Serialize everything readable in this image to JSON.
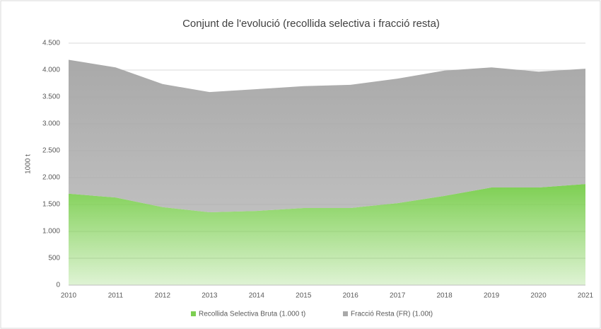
{
  "chart_data": {
    "type": "stacked_area",
    "title": "Conjunt de l'evolució (recollida selectiva i fracció resta)",
    "y_label": "1000 t",
    "categories": [
      "2010",
      "2011",
      "2012",
      "2013",
      "2014",
      "2015",
      "2016",
      "2017",
      "2018",
      "2019",
      "2020",
      "2021"
    ],
    "series": [
      {
        "name": "Recollida Selectiva Bruta (1.000 t)",
        "color": "#7dcf52",
        "values": [
          1700,
          1630,
          1450,
          1355,
          1380,
          1435,
          1435,
          1525,
          1660,
          1815,
          1815,
          1880
        ]
      },
      {
        "name": "Fracció Resta (FR) (1.00t)",
        "color": "#a9a9a9",
        "values": [
          2490,
          2420,
          2290,
          2235,
          2265,
          2265,
          2290,
          2315,
          2330,
          2235,
          2155,
          2145
        ]
      }
    ],
    "ylim": [
      0,
      4500
    ],
    "yticks": [
      0,
      500,
      {
        "value": 1000,
        "label": "1.000"
      },
      {
        "value": 1500,
        "label": "1.500"
      },
      {
        "value": 2000,
        "label": "2.000"
      },
      {
        "value": 2500,
        "label": "2.500"
      },
      {
        "value": 3000,
        "label": "3.000"
      },
      {
        "value": 3500,
        "label": "3.500"
      },
      {
        "value": 4000,
        "label": "4.000"
      },
      {
        "value": 4500,
        "label": "4.500"
      }
    ],
    "grid": true,
    "legend": "bottom"
  }
}
